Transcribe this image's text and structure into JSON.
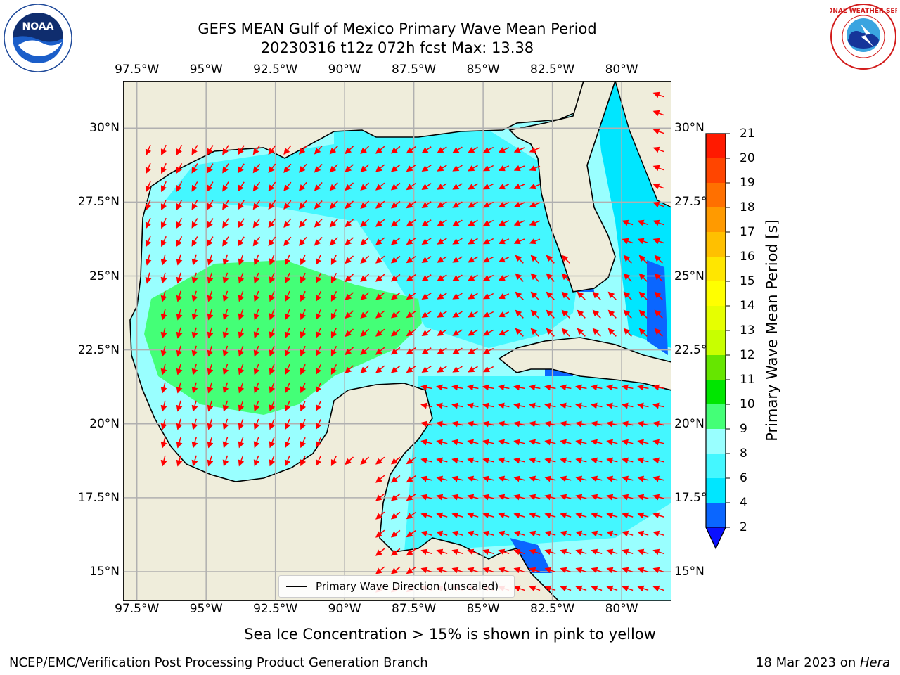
{
  "title": {
    "line1": "GEFS MEAN Gulf of Mexico Primary Wave Mean Period",
    "line2": "20230316 t12z 072h fcst   Max: 13.38"
  },
  "map": {
    "lon_ticks": [
      "97.5°W",
      "95°W",
      "92.5°W",
      "90°W",
      "87.5°W",
      "85°W",
      "82.5°W",
      "80°W"
    ],
    "lat_ticks": [
      "30°N",
      "27.5°N",
      "25°N",
      "22.5°N",
      "20°N",
      "17.5°N",
      "15°N"
    ],
    "lon_range": [
      -98,
      -78.2
    ],
    "lat_range": [
      14,
      31.6
    ],
    "land_color": "#efeddb",
    "arrow_color": "#ff0000"
  },
  "colorbar": {
    "label": "Primary Wave Mean Period [s]",
    "ticks": [
      "2",
      "4",
      "6",
      "8",
      "9",
      "10",
      "11",
      "12",
      "13",
      "14",
      "15",
      "16",
      "17",
      "18",
      "19",
      "20",
      "21"
    ],
    "colors": [
      "#0a66ff",
      "#00e6ff",
      "#44f7ff",
      "#99ffff",
      "#44ff77",
      "#00e600",
      "#66e600",
      "#c8ff00",
      "#e6ff00",
      "#ffff00",
      "#ffe600",
      "#ffc000",
      "#ff9a00",
      "#ff7000",
      "#ff4500",
      "#ff1a00"
    ],
    "extend_color": "#0a10ff"
  },
  "legend": {
    "label": "Primary Wave Direction (unscaled)"
  },
  "note": "Sea Ice Concentration > 15% is shown in pink to yellow",
  "footer": {
    "left": "NCEP/EMC/Verification Post Processing Product Generation Branch",
    "right_prefix": "18 Mar 2023 on ",
    "right_host": "Hera"
  },
  "logos": {
    "left": "NOAA",
    "right": "NATIONAL WEATHER SERVICE"
  }
}
